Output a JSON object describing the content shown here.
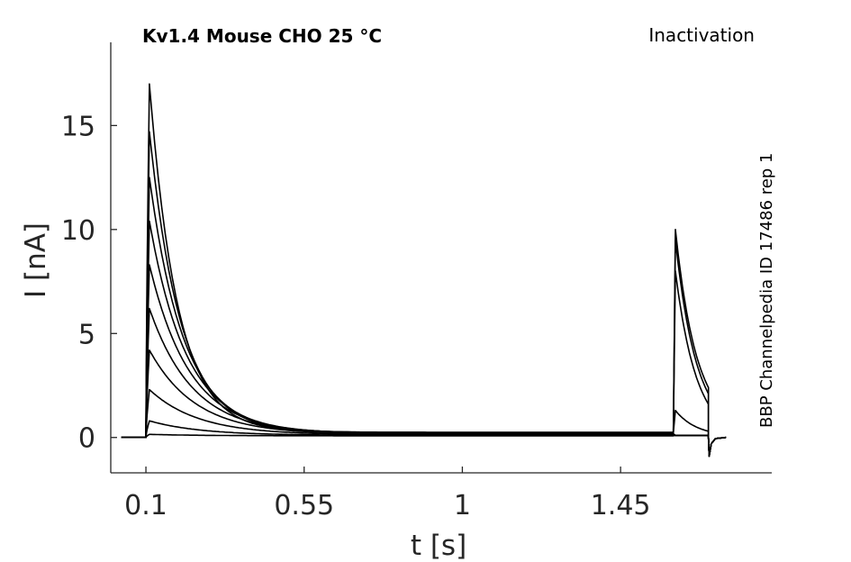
{
  "chart_data": {
    "type": "line",
    "title": "Kv1.4  Mouse  CHO  25 °C",
    "subtitle": "Inactivation",
    "annotation": "BBP Channelpedia ID 17486 rep 1",
    "xlabel": "t [s]",
    "ylabel": "I [nA]",
    "xlim": [
      -0.0,
      1.88
    ],
    "ylim": [
      -1.7,
      19.0
    ],
    "xticks": [
      0.1,
      0.55,
      1,
      1.45
    ],
    "xtick_labels": [
      "0.1",
      "0.55",
      "1",
      "1.45"
    ],
    "yticks": [
      0,
      5,
      10,
      15
    ],
    "ytick_labels": [
      "0",
      "5",
      "10",
      "15"
    ],
    "grid": false,
    "legend": "none",
    "pulse1_onset": 0.1,
    "pulse1_end": 1.6,
    "pulse2_onset": 1.6,
    "pulse2_end": 1.7,
    "series": [
      {
        "peak1": 17.0,
        "steady1": 0.25,
        "peak2": 10.0,
        "end2": 2.4
      },
      {
        "peak1": 14.7,
        "steady1": 0.24,
        "peak2": 9.5,
        "end2": 2.1
      },
      {
        "peak1": 12.5,
        "steady1": 0.22,
        "peak2": 8.0,
        "end2": 1.6
      },
      {
        "peak1": 10.4,
        "steady1": 0.2,
        "peak2": 1.3,
        "end2": 0.3
      },
      {
        "peak1": 8.3,
        "steady1": 0.18,
        "peak2": 0.1,
        "end2": 0.1
      },
      {
        "peak1": 6.2,
        "steady1": 0.16,
        "peak2": 0.1,
        "end2": 0.1
      },
      {
        "peak1": 4.2,
        "steady1": 0.14,
        "peak2": 0.1,
        "end2": 0.1
      },
      {
        "peak1": 2.3,
        "steady1": 0.12,
        "peak2": 0.1,
        "end2": 0.1
      },
      {
        "peak1": 0.8,
        "steady1": 0.1,
        "peak2": 0.1,
        "end2": 0.1
      },
      {
        "peak1": 0.15,
        "steady1": 0.08,
        "peak2": 0.1,
        "end2": 0.1
      }
    ]
  }
}
